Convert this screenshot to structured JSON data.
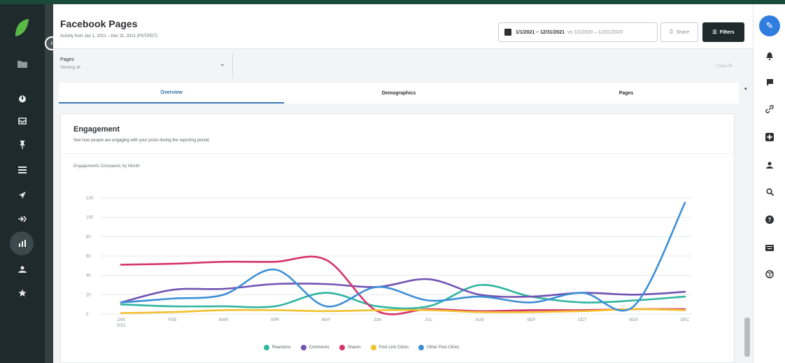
{
  "header": {
    "title": "Facebook Pages",
    "subtitle": "Activity from Jan 1, 2021 – Dec 31, 2021 (PST/PDT)",
    "date_range": "1/1/2021 – 12/31/2021",
    "compare_range": "vs 1/1/2020 – 12/31/2020",
    "share_label": "Share",
    "filters_label": "Filters"
  },
  "filter": {
    "label": "Pages",
    "value": "Viewing all",
    "clear_label": "Clear All"
  },
  "tabs": [
    {
      "label": "Overview",
      "active": true
    },
    {
      "label": "Demographics",
      "active": false
    },
    {
      "label": "Pages",
      "active": false
    }
  ],
  "card": {
    "title": "Engagement",
    "description": "See how people are engaging with your posts during the reporting period.",
    "chart_title": "Engagements Compared, by Month"
  },
  "icons": {
    "left_nav": [
      "sprout-logo",
      "folder-icon",
      "home-icon",
      "inbox-icon",
      "pin-icon",
      "list-icon",
      "send-icon",
      "listening-icon",
      "reports-icon",
      "people-icon",
      "star-icon"
    ],
    "right_bar": [
      "compose-icon",
      "bell-icon",
      "message-icon",
      "link-icon",
      "add-icon",
      "people-icon",
      "search-icon",
      "help-icon",
      "keyboard-icon",
      "globe-icon"
    ]
  },
  "colors": {
    "reactions": "#2fb5a0",
    "comments": "#7254b3",
    "shares": "#d6336c",
    "post_link_clicks": "#f2c12e",
    "other_post_clicks": "#3d8fd6",
    "compose": "#2f7de0"
  },
  "chart_data": {
    "type": "line",
    "title": "Engagements Compared, by Month",
    "categories": [
      "JAN 2021",
      "FEB",
      "MAR",
      "APR",
      "MAY",
      "JUN",
      "JUL",
      "AUG",
      "SEP",
      "OCT",
      "NOV",
      "DEC"
    ],
    "ytick_labels": [
      "0",
      "20",
      "40",
      "60",
      "80",
      "100",
      "120"
    ],
    "ylim": [
      0,
      120
    ],
    "grid": true,
    "legend_position": "bottom",
    "series": [
      {
        "name": "Reactions",
        "color": "#2fb5a0",
        "values": [
          10,
          8,
          8,
          8,
          22,
          8,
          8,
          30,
          18,
          12,
          14,
          18
        ]
      },
      {
        "name": "Comments",
        "color": "#7254b3",
        "values": [
          12,
          25,
          26,
          31,
          31,
          28,
          36,
          20,
          18,
          22,
          20,
          23
        ]
      },
      {
        "name": "Shares",
        "color": "#d6336c",
        "values": [
          51,
          52,
          54,
          54,
          56,
          3,
          5,
          3,
          4,
          4,
          5,
          5
        ]
      },
      {
        "name": "Post Link Clicks",
        "color": "#f2c12e",
        "values": [
          1,
          2,
          4,
          4,
          3,
          4,
          4,
          2,
          2,
          3,
          5,
          4
        ]
      },
      {
        "name": "Other Post Clicks",
        "color": "#3d8fd6",
        "values": [
          12,
          16,
          20,
          46,
          8,
          28,
          14,
          18,
          12,
          22,
          8,
          115
        ]
      }
    ]
  }
}
